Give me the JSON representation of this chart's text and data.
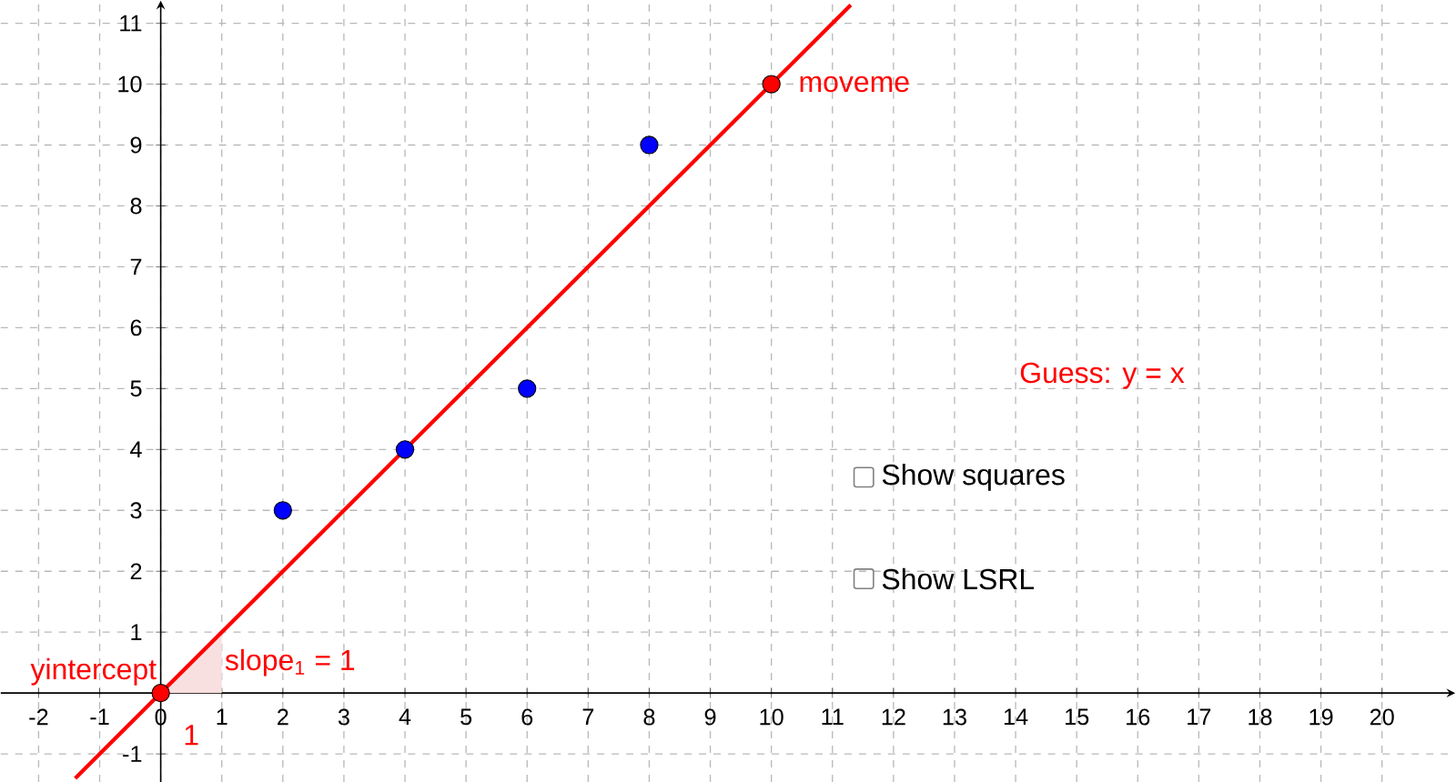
{
  "chart_data": {
    "type": "scatter",
    "series": [
      {
        "type": "area",
        "marker": "none",
        "color": "#f9e0e0",
        "x": [
          0,
          1
        ],
        "values": [
          0,
          1
        ]
      },
      {
        "type": "line",
        "marker": "none",
        "color": "#ff0000",
        "x": [
          -1.4,
          11.3
        ],
        "values": [
          -1.4,
          11.3
        ]
      },
      {
        "type": "scatter",
        "marker": "circle",
        "color": "#0000ff",
        "x": [
          2,
          4,
          6,
          8
        ],
        "values": [
          3,
          4,
          5,
          9
        ]
      },
      {
        "type": "scatter",
        "marker": "circle",
        "color": "#ff0000",
        "x": [
          0,
          10
        ],
        "values": [
          0,
          10
        ]
      }
    ],
    "xlim": [
      -2.62,
      21.2
    ],
    "ylim": [
      -1.46,
      11.37
    ],
    "xticks": [
      -2,
      -1,
      0,
      1,
      2,
      3,
      4,
      5,
      6,
      7,
      8,
      9,
      10,
      11,
      12,
      13,
      14,
      15,
      16,
      17,
      18,
      19,
      20
    ],
    "yticks": [
      -1,
      1,
      2,
      3,
      4,
      5,
      6,
      7,
      8,
      9,
      10,
      11
    ],
    "grid": true,
    "annotations": [
      {
        "text": "moveme",
        "x": 10,
        "y": 10
      },
      {
        "text": "yintercept",
        "x": 0,
        "y": 0
      },
      {
        "text": "slope$_{1}$ = 1",
        "x": 1,
        "y": 0.5
      },
      {
        "text": "1",
        "x": 0.5,
        "y": 0
      },
      "Guess: y = x",
      "Show squares",
      "Show LSRL"
    ]
  }
}
